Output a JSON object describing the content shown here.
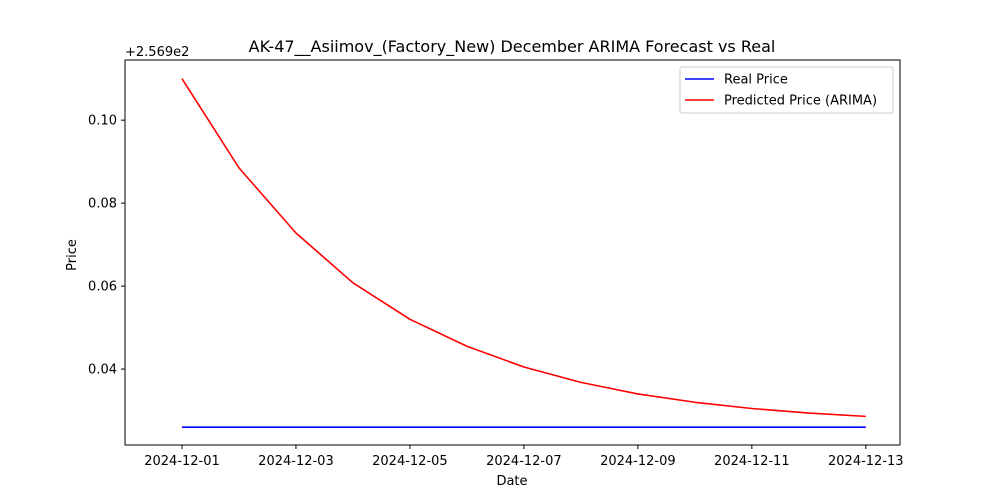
{
  "chart_data": {
    "type": "line",
    "title": "AK-47__Asiimov_(Factory_New) December ARIMA Forecast vs Real",
    "xlabel": "Date",
    "ylabel": "Price",
    "y_offset_label": "+2.569e2",
    "x": [
      "2024-12-01",
      "2024-12-02",
      "2024-12-03",
      "2024-12-04",
      "2024-12-05",
      "2024-12-06",
      "2024-12-07",
      "2024-12-08",
      "2024-12-09",
      "2024-12-10",
      "2024-12-11",
      "2024-12-12",
      "2024-12-13"
    ],
    "x_ticks": [
      "2024-12-01",
      "2024-12-03",
      "2024-12-05",
      "2024-12-07",
      "2024-12-09",
      "2024-12-11",
      "2024-12-13"
    ],
    "y_ticks": [
      {
        "value": 0.04,
        "label": "0.04"
      },
      {
        "value": 0.06,
        "label": "0.06"
      },
      {
        "value": 0.08,
        "label": "0.08"
      },
      {
        "value": 0.1,
        "label": "0.10"
      }
    ],
    "xlim": [
      "2024-11-30 00:00",
      "2024-12-13 14:24"
    ],
    "ylim": [
      0.0217,
      0.1145
    ],
    "grid": false,
    "legend_position": "top-right",
    "series": [
      {
        "name": "Real Price",
        "color": "#0000ff",
        "values": [
          0.026,
          0.026,
          0.026,
          0.026,
          0.026,
          0.026,
          0.026,
          0.026,
          0.026,
          0.026,
          0.026,
          0.026,
          0.026
        ]
      },
      {
        "name": "Predicted Price (ARIMA)",
        "color": "#ff0000",
        "values": [
          0.11,
          0.0885,
          0.0728,
          0.0608,
          0.052,
          0.0455,
          0.0405,
          0.0368,
          0.034,
          0.032,
          0.0305,
          0.0294,
          0.0286
        ]
      }
    ]
  }
}
